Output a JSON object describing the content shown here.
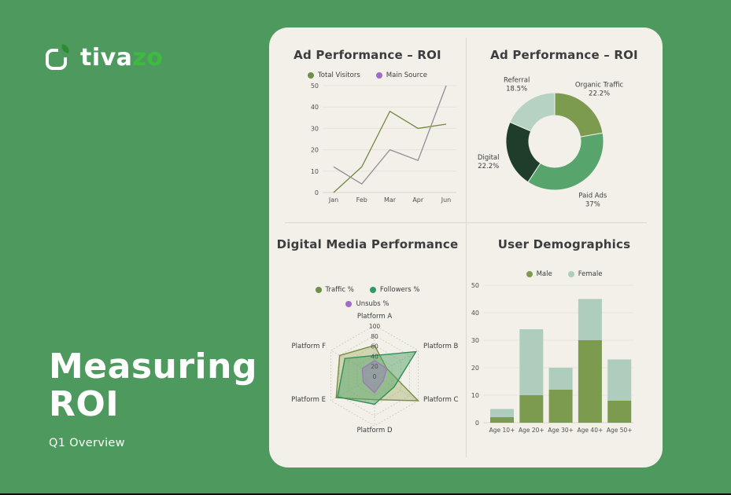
{
  "page": {
    "bg_color": "#4e9a5e",
    "card_color": "#f2f0e9",
    "divider_color": "#dbd8cd",
    "bottom_edge_color": "#101010"
  },
  "logo": {
    "text_primary": "tiva",
    "text_accent": "zo",
    "accent_color": "#3cbb40",
    "mark_icon": "rounded-square-with-leaf"
  },
  "hero": {
    "title_line1": "Measuring",
    "title_line2": "ROI",
    "subtitle": "Q1 Overview"
  },
  "chart_data": [
    {
      "type": "line",
      "title": "Ad Performance – ROI",
      "x": [
        "Jan",
        "Feb",
        "Mar",
        "Apr",
        "Jun"
      ],
      "series": [
        {
          "name": "Total Visitors",
          "values": [
            0,
            12,
            38,
            30,
            32
          ],
          "color": "#75853e",
          "dot_color": "#6d8f49"
        },
        {
          "name": "Main Source",
          "values": [
            12,
            4,
            20,
            15,
            50
          ],
          "color": "#8f8d96",
          "dot_color": "#a06cc4"
        }
      ],
      "ylim": [
        0,
        50
      ],
      "yticks": [
        0,
        10,
        20,
        30,
        40,
        50
      ],
      "grid": true,
      "legend_position": "top"
    },
    {
      "type": "pie",
      "title": "Ad Performance – ROI",
      "donut": true,
      "start_angle_deg": 0,
      "direction": "clockwise",
      "slices": [
        {
          "label": "Organic Traffic",
          "pct_label": "22.2%",
          "value": 22.2,
          "color": "#7d9b4e"
        },
        {
          "label": "Paid Ads",
          "pct_label": "37%",
          "value": 37,
          "color": "#57a46c"
        },
        {
          "label": "Digital",
          "pct_label": "22.2%",
          "value": 22.2,
          "color": "#1e3e2b"
        },
        {
          "label": "Referral",
          "pct_label": "18.5%",
          "value": 18.5,
          "color": "#b5d2c3"
        }
      ]
    },
    {
      "type": "radar",
      "title": "Digital Media Performance",
      "axes": [
        "Platform A",
        "Platform B",
        "Platform C",
        "Platform D",
        "Platform E",
        "Platform F"
      ],
      "rmax": 100,
      "rticks": [
        0,
        20,
        40,
        60,
        80,
        100
      ],
      "series": [
        {
          "name": "Traffic %",
          "values": [
            60,
            28,
            100,
            48,
            88,
            80
          ],
          "color": "#7a8b42",
          "fill": "rgba(160,175,95,0.40)",
          "dot_color": "#6d8f49"
        },
        {
          "name": "Followers %",
          "values": [
            40,
            95,
            45,
            57,
            85,
            68
          ],
          "color": "#2e8f5a",
          "fill": "rgba(85,164,106,0.50)",
          "dot_color": "#2a9d63"
        },
        {
          "name": "Unsubs %",
          "values": [
            30,
            28,
            20,
            34,
            26,
            28
          ],
          "color": "#9a7ab8",
          "fill": "rgba(154,122,184,0.45)",
          "dot_color": "#a06cc4"
        }
      ],
      "legend_position": "top"
    },
    {
      "type": "bar",
      "stacked": true,
      "title": "User Demographics",
      "categories": [
        "Age 10+",
        "Age 20+",
        "Age 30+",
        "Age 40+",
        "Age 50+"
      ],
      "series": [
        {
          "name": "Male",
          "values": [
            2,
            10,
            12,
            30,
            8
          ],
          "color": "#7d9b4e"
        },
        {
          "name": "Female",
          "values": [
            3,
            24,
            8,
            15,
            15
          ],
          "color": "#aecdbd"
        }
      ],
      "ylim": [
        0,
        50
      ],
      "yticks": [
        0,
        10,
        20,
        30,
        40,
        50
      ],
      "grid": true,
      "legend_position": "top"
    }
  ]
}
